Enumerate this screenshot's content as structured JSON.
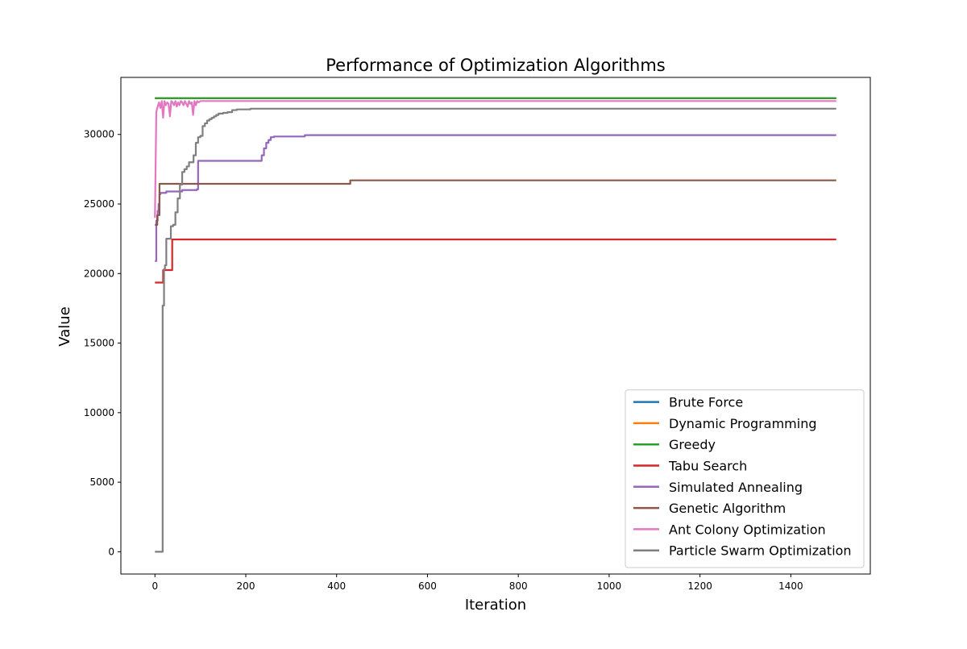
{
  "chart_data": {
    "type": "line",
    "title": "Performance of Optimization Algorithms",
    "xlabel": "Iteration",
    "ylabel": "Value",
    "xlim": [
      -75,
      1575
    ],
    "ylim": [
      -1600,
      34100
    ],
    "xticks": [
      0,
      200,
      400,
      600,
      800,
      1000,
      1200,
      1400
    ],
    "yticks": [
      0,
      5000,
      10000,
      15000,
      20000,
      25000,
      30000
    ],
    "grid": false,
    "legend_position": "lower-right",
    "series": [
      {
        "name": "Brute Force",
        "color": "#1f77b4",
        "x": [
          0,
          1500
        ],
        "y": [
          32600,
          32600
        ]
      },
      {
        "name": "Dynamic Programming",
        "color": "#ff7f0e",
        "x": [
          0,
          1500
        ],
        "y": [
          32600,
          32600
        ]
      },
      {
        "name": "Greedy",
        "color": "#2ca02c",
        "x": [
          0,
          1500
        ],
        "y": [
          32600,
          32600
        ]
      },
      {
        "name": "Tabu Search",
        "color": "#d62728",
        "x": [
          0,
          18,
          18,
          38,
          38,
          1500
        ],
        "y": [
          19350,
          19350,
          20250,
          20250,
          22450,
          22450
        ]
      },
      {
        "name": "Simulated Annealing",
        "color": "#9467bd",
        "x": [
          0,
          3,
          6,
          8,
          10,
          12,
          25,
          25,
          60,
          60,
          70,
          92,
          95,
          100,
          230,
          235,
          240,
          245,
          250,
          255,
          262,
          270,
          325,
          330,
          1500
        ],
        "y": [
          20900,
          23800,
          24500,
          25000,
          25700,
          25800,
          25850,
          25900,
          25900,
          26000,
          26000,
          26050,
          28100,
          28100,
          28100,
          28500,
          29000,
          29400,
          29600,
          29800,
          29850,
          29850,
          29850,
          29950,
          29950
        ],
        "step": true
      },
      {
        "name": "Genetic Algorithm",
        "color": "#8c564b",
        "x": [
          0,
          5,
          10,
          425,
          430,
          1500
        ],
        "y": [
          23500,
          24200,
          26450,
          26450,
          26700,
          26700
        ],
        "step": true
      },
      {
        "name": "Ant Colony Optimization",
        "color": "#e377c2",
        "x": [
          0,
          3,
          6,
          9,
          12,
          15,
          18,
          21,
          24,
          27,
          30,
          33,
          36,
          39,
          42,
          45,
          48,
          51,
          54,
          57,
          60,
          63,
          66,
          69,
          72,
          75,
          78,
          81,
          84,
          87,
          90,
          93,
          96,
          100,
          1500
        ],
        "y": [
          24000,
          31600,
          32000,
          32300,
          31900,
          32400,
          31200,
          32400,
          32100,
          32300,
          32200,
          31300,
          32400,
          32300,
          32100,
          32400,
          32000,
          32300,
          32100,
          32400,
          32300,
          32100,
          32400,
          32200,
          32000,
          32400,
          32200,
          32300,
          31400,
          32400,
          32100,
          32400,
          32300,
          32400,
          32400
        ]
      },
      {
        "name": "Particle Swarm Optimization",
        "color": "#7f7f7f",
        "x": [
          0,
          17,
          17,
          20,
          22,
          25,
          28,
          32,
          35,
          40,
          45,
          50,
          55,
          60,
          65,
          70,
          75,
          80,
          85,
          90,
          95,
          100,
          105,
          110,
          115,
          120,
          125,
          130,
          135,
          140,
          150,
          160,
          170,
          180,
          190,
          200,
          210,
          220,
          1500
        ],
        "y": [
          0,
          0,
          17700,
          20300,
          20600,
          22500,
          22500,
          22500,
          23400,
          23500,
          24400,
          25400,
          26400,
          27300,
          27500,
          27700,
          28000,
          28000,
          28500,
          29400,
          29800,
          29900,
          30600,
          30800,
          31000,
          31100,
          31200,
          31300,
          31400,
          31500,
          31550,
          31600,
          31750,
          31800,
          31800,
          31800,
          31850,
          31850,
          31850
        ],
        "step": true
      }
    ]
  }
}
